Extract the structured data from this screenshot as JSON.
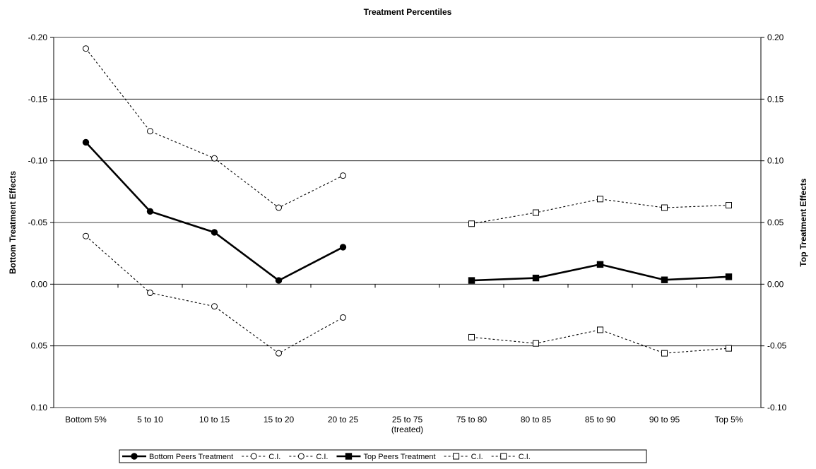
{
  "chart_data": {
    "type": "line",
    "title": "Treatment Percentiles",
    "y_left_label": "Bottom Treatment Effects",
    "y_right_label": "Top Treatment Effects",
    "categories": [
      [
        "Bottom 5%"
      ],
      [
        "5 to 10"
      ],
      [
        "10 to 15"
      ],
      [
        "15 to 20"
      ],
      [
        "20 to 25"
      ],
      [
        "25 to 75",
        "(treated)"
      ],
      [
        "75 to 80"
      ],
      [
        "80 to 85"
      ],
      [
        "85 to 90"
      ],
      [
        "90 to 95"
      ],
      [
        "Top 5%"
      ]
    ],
    "y_left_ticks": [
      "-0.20",
      "-0.15",
      "-0.10",
      "-0.05",
      "0.00",
      "0.05",
      "0.10"
    ],
    "y_right_ticks": [
      "0.20",
      "0.15",
      "0.10",
      "0.05",
      "0.00",
      "-0.05",
      "-0.10"
    ],
    "y_left_range_inverted": [
      -0.2,
      0.1
    ],
    "y_right_range": [
      -0.1,
      0.2
    ],
    "grid": "horizontal",
    "series": [
      {
        "name": "Bottom Peers Treatment",
        "axis": "left",
        "style": "solid",
        "marker": "filled-circle",
        "values": [
          -0.115,
          -0.059,
          -0.042,
          -0.003,
          -0.03,
          null,
          null,
          null,
          null,
          null,
          null
        ]
      },
      {
        "name": "C.I.",
        "axis": "left",
        "style": "dotted",
        "marker": "open-circle",
        "values": [
          -0.191,
          -0.124,
          -0.102,
          -0.062,
          -0.088,
          null,
          null,
          null,
          null,
          null,
          null
        ]
      },
      {
        "name": "C.I.",
        "axis": "left",
        "style": "dotted",
        "marker": "open-circle",
        "values": [
          -0.039,
          0.007,
          0.018,
          0.056,
          0.027,
          null,
          null,
          null,
          null,
          null,
          null
        ]
      },
      {
        "name": "Top Peers Treatment",
        "axis": "right",
        "style": "solid",
        "marker": "filled-square",
        "values": [
          null,
          null,
          null,
          null,
          null,
          null,
          0.003,
          0.005,
          0.016,
          0.0035,
          0.006
        ]
      },
      {
        "name": "C.I.",
        "axis": "right",
        "style": "dotted",
        "marker": "open-square",
        "values": [
          null,
          null,
          null,
          null,
          null,
          null,
          0.049,
          0.058,
          0.069,
          0.062,
          0.064
        ]
      },
      {
        "name": "C.I.",
        "axis": "right",
        "style": "dotted",
        "marker": "open-square",
        "values": [
          null,
          null,
          null,
          null,
          null,
          null,
          -0.043,
          -0.048,
          -0.037,
          -0.056,
          -0.052
        ]
      }
    ],
    "legend_position": "bottom"
  }
}
